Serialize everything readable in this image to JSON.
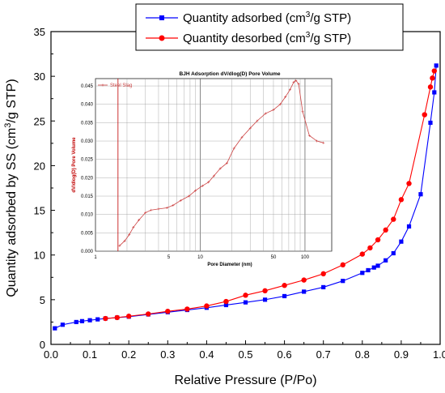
{
  "chart_data": [
    {
      "type": "line",
      "xlabel": "Relative Pressure (P/Po)",
      "ylabel": "Quantity adsorbed by SS (cm3/g STP)",
      "xlim": [
        0.0,
        1.0
      ],
      "ylim": [
        0,
        35
      ],
      "x_ticks": [
        "0.0",
        "0.1",
        "0.2",
        "0.3",
        "0.4",
        "0.5",
        "0.6",
        "0.7",
        "0.8",
        "0.9",
        "1.0"
      ],
      "y_ticks": [
        "0",
        "5",
        "10",
        "15",
        "20",
        "25",
        "30",
        "35"
      ],
      "legend_position": "top-right",
      "series": [
        {
          "name": "Quantity adsorbed (cm3/g STP)",
          "color": "#0000ff",
          "marker": "square",
          "x": [
            0.01,
            0.03,
            0.065,
            0.08,
            0.1,
            0.12,
            0.14,
            0.17,
            0.2,
            0.25,
            0.3,
            0.35,
            0.4,
            0.45,
            0.5,
            0.55,
            0.6,
            0.65,
            0.7,
            0.75,
            0.8,
            0.815,
            0.83,
            0.84,
            0.86,
            0.88,
            0.9,
            0.92,
            0.95,
            0.975,
            0.985,
            0.99
          ],
          "y": [
            1.8,
            2.2,
            2.5,
            2.6,
            2.7,
            2.8,
            2.9,
            3.0,
            3.1,
            3.35,
            3.6,
            3.85,
            4.1,
            4.4,
            4.7,
            5.0,
            5.4,
            5.9,
            6.4,
            7.1,
            8.0,
            8.3,
            8.6,
            8.8,
            9.4,
            10.2,
            11.5,
            13.2,
            16.8,
            24.8,
            28.2,
            31.2
          ]
        },
        {
          "name": "Quantity desorbed (cm3/g STP)",
          "color": "#ff0000",
          "marker": "circle",
          "x": [
            0.14,
            0.17,
            0.2,
            0.25,
            0.3,
            0.35,
            0.4,
            0.45,
            0.5,
            0.55,
            0.6,
            0.65,
            0.7,
            0.75,
            0.8,
            0.82,
            0.84,
            0.86,
            0.88,
            0.9,
            0.92,
            0.96,
            0.975,
            0.98,
            0.985
          ],
          "y": [
            2.9,
            3.0,
            3.15,
            3.4,
            3.7,
            3.95,
            4.3,
            4.8,
            5.5,
            6.0,
            6.6,
            7.2,
            7.9,
            8.9,
            10.1,
            10.8,
            11.7,
            12.8,
            14.0,
            16.2,
            18.0,
            25.7,
            28.8,
            29.8,
            30.6
          ]
        }
      ]
    },
    {
      "type": "line",
      "title": "BJH Adsorption dV/dlog(D) Pore Volume",
      "xlabel": "Pore Diameter (nm)",
      "ylabel": "dV/dlog(D) Pore Volume",
      "xscale": "log",
      "xlim": [
        1,
        180
      ],
      "ylim": [
        0,
        0.047
      ],
      "x_ticks": [
        {
          "v": 1,
          "label": "1"
        },
        {
          "v": 5,
          "label": "5"
        },
        {
          "v": 10,
          "label": "10"
        },
        {
          "v": 50,
          "label": "50"
        },
        {
          "v": 100,
          "label": "100"
        }
      ],
      "y_ticks": [
        "0.000",
        "0.005",
        "0.010",
        "0.015",
        "0.020",
        "0.025",
        "0.030",
        "0.035",
        "0.040",
        "0.045"
      ],
      "legend_position": "top-left",
      "series": [
        {
          "name": "Steel Slag",
          "color": "#c44",
          "marker": "plus",
          "x": [
            1.7,
            1.9,
            2.1,
            2.3,
            2.6,
            3.0,
            3.4,
            4.0,
            4.8,
            5.5,
            6.5,
            7.8,
            9.0,
            10.5,
            12.0,
            13.5,
            15.5,
            18,
            21,
            25,
            30,
            35,
            42,
            50,
            58,
            65,
            72,
            78,
            82,
            87,
            95,
            110,
            130,
            150
          ],
          "y": [
            0.0015,
            0.0028,
            0.0045,
            0.0065,
            0.0085,
            0.0105,
            0.0112,
            0.0115,
            0.0118,
            0.0125,
            0.0138,
            0.015,
            0.0165,
            0.0178,
            0.0188,
            0.0205,
            0.0225,
            0.024,
            0.028,
            0.031,
            0.0335,
            0.0355,
            0.0375,
            0.0385,
            0.04,
            0.042,
            0.044,
            0.046,
            0.0465,
            0.0455,
            0.038,
            0.0315,
            0.03,
            0.0295
          ]
        }
      ]
    }
  ]
}
